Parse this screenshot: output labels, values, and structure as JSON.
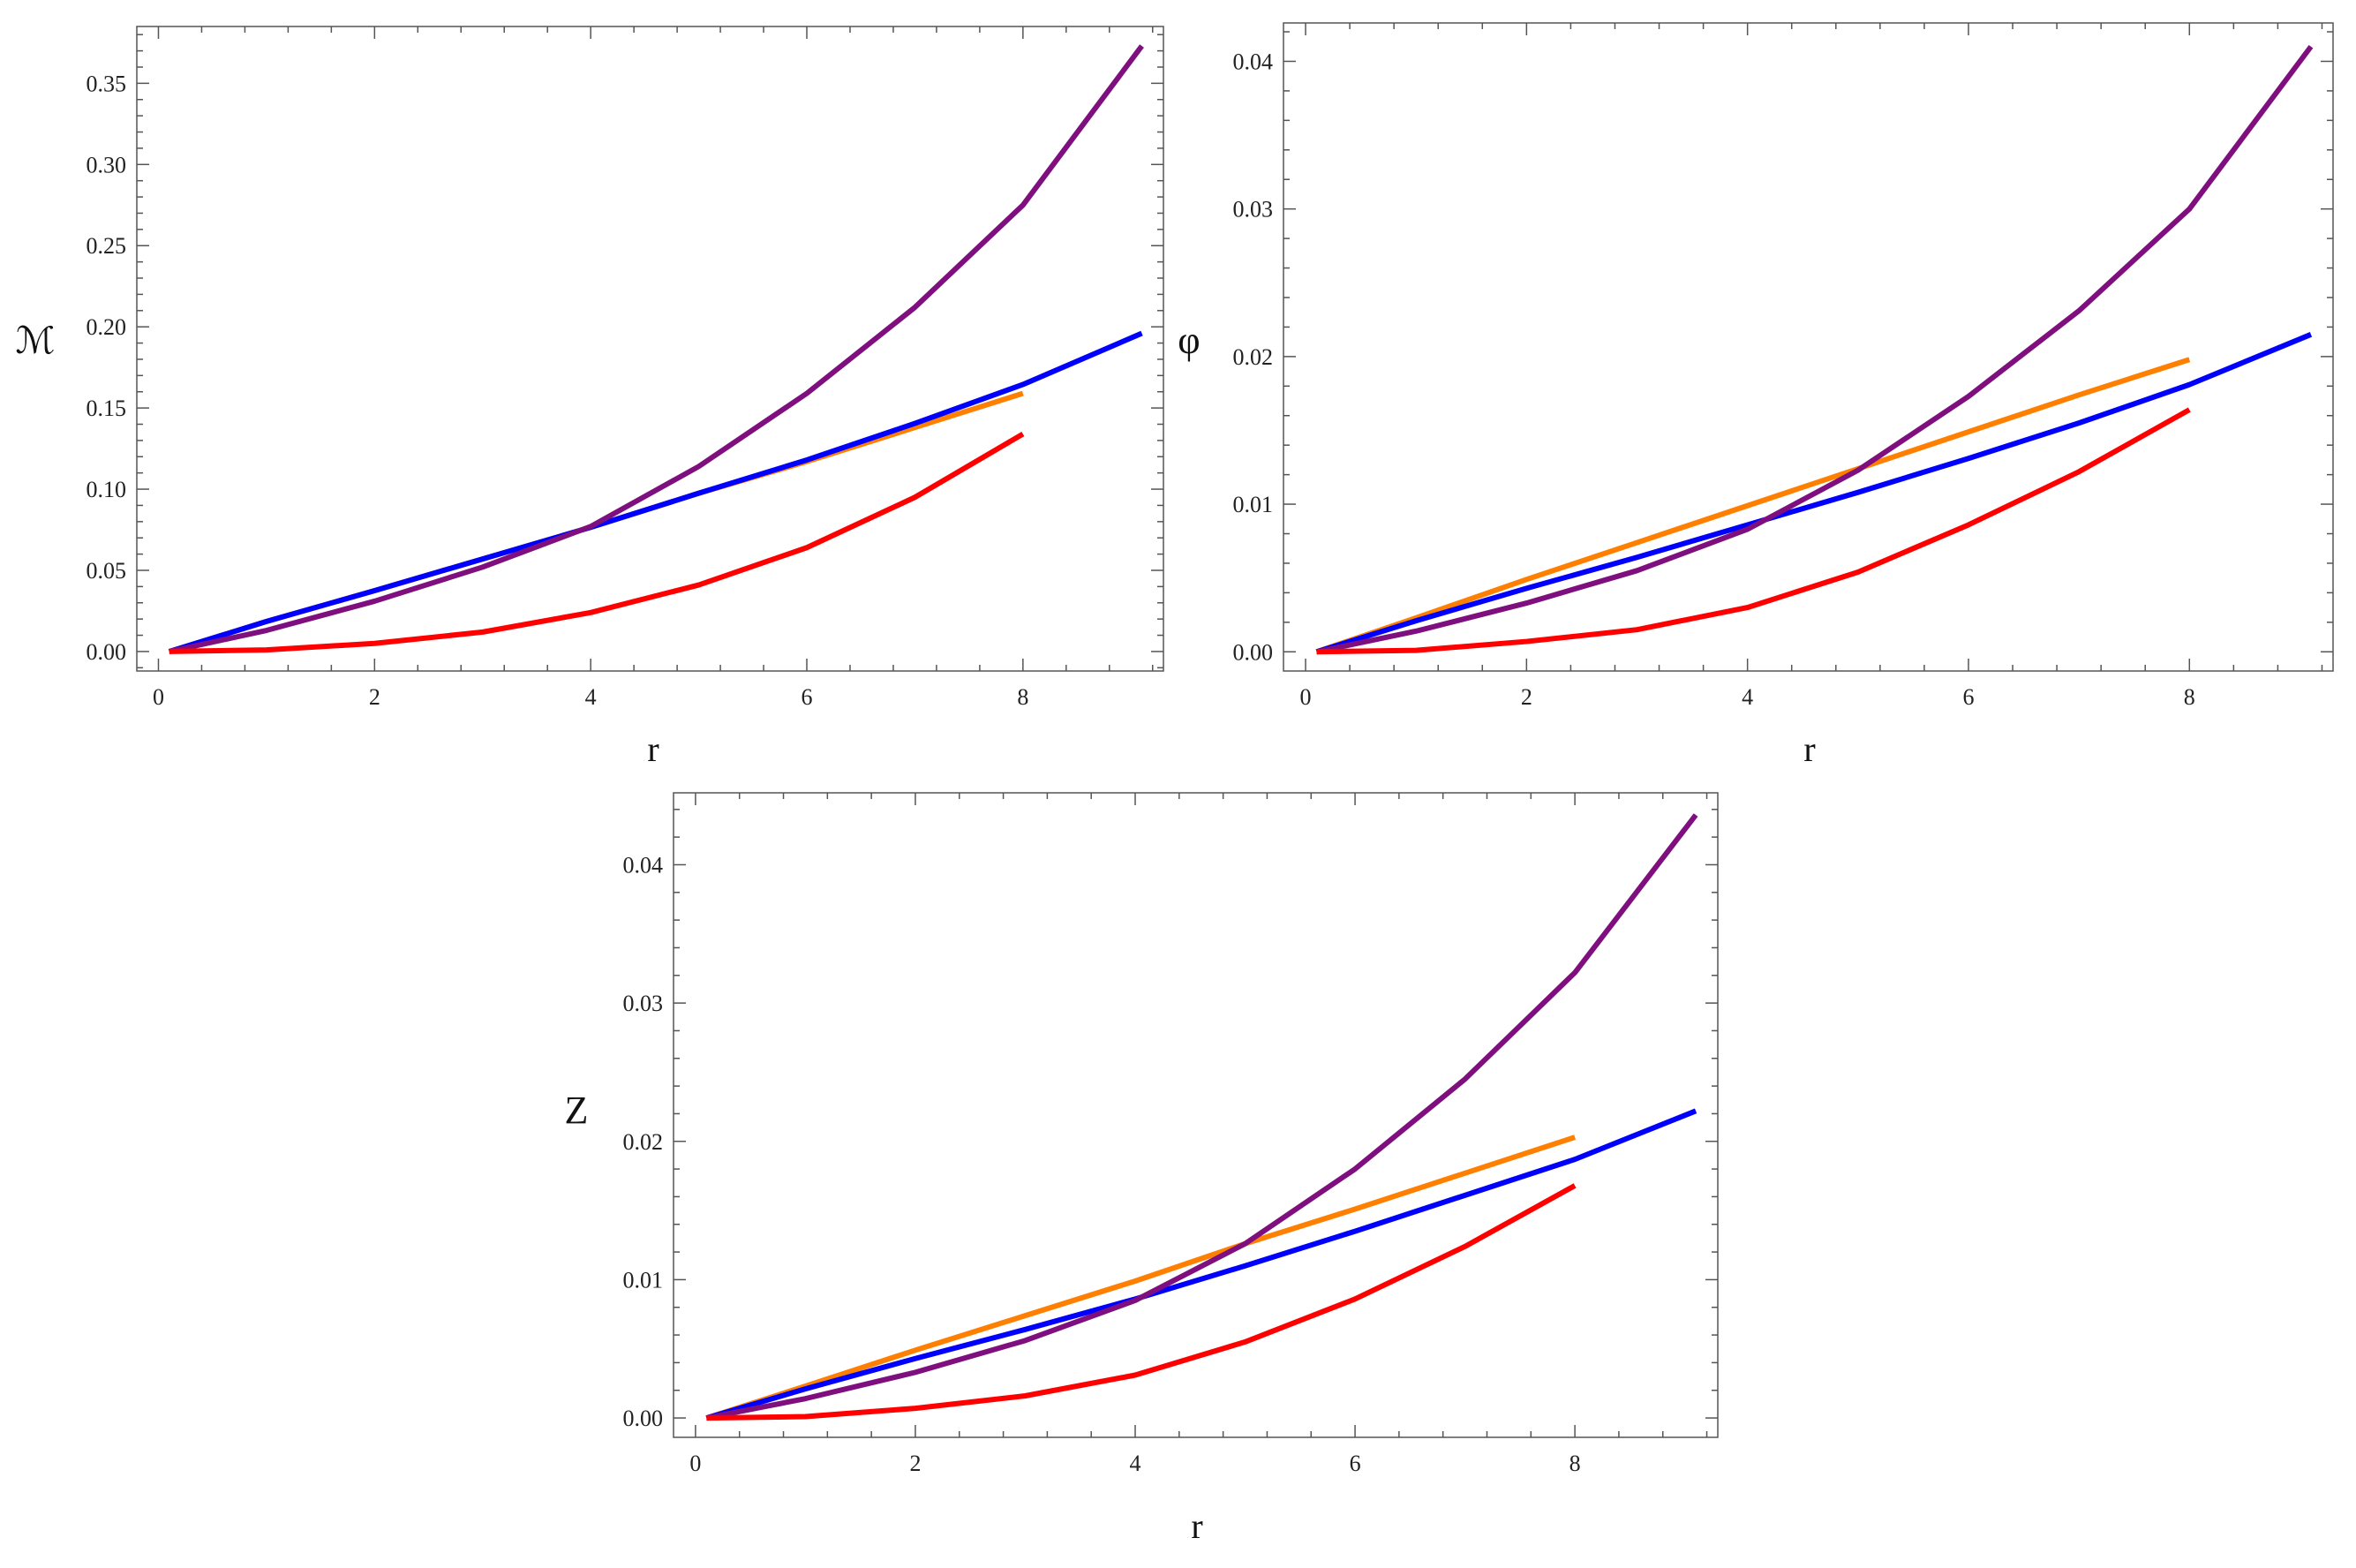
{
  "chart_data": [
    {
      "type": "line",
      "xlabel": "r",
      "ylabel": "ℳ",
      "xlim": [
        -0.2,
        9.3
      ],
      "ylim": [
        -0.012,
        0.385
      ],
      "xticks": [
        0,
        2,
        4,
        6,
        8
      ],
      "yticks": [
        0.0,
        0.05,
        0.1,
        0.15,
        0.2,
        0.25,
        0.3,
        0.35
      ],
      "ytick_format": 2,
      "grid": false,
      "series": [
        {
          "color": "#ff8000",
          "x": [
            0.1,
            1,
            2,
            3,
            4,
            5,
            6,
            7,
            8
          ],
          "y": [
            0.0,
            0.0185,
            0.0375,
            0.057,
            0.0765,
            0.0975,
            0.117,
            0.138,
            0.159
          ]
        },
        {
          "color": "#0000ff",
          "x": [
            0.1,
            1,
            2,
            3,
            4,
            5,
            6,
            7,
            8,
            9.1
          ],
          "y": [
            0.0,
            0.0185,
            0.0375,
            0.057,
            0.0765,
            0.0975,
            0.118,
            0.1405,
            0.1645,
            0.196
          ]
        },
        {
          "color": "#7f0f7f",
          "x": [
            0.1,
            1,
            2,
            3,
            4,
            5,
            6,
            7,
            8,
            9.1
          ],
          "y": [
            0.0,
            0.013,
            0.031,
            0.052,
            0.077,
            0.114,
            0.159,
            0.212,
            0.275,
            0.373
          ]
        },
        {
          "color": "#ff0000",
          "x": [
            0.1,
            1,
            2,
            3,
            4,
            5,
            6,
            7,
            8
          ],
          "y": [
            0.0,
            0.001,
            0.005,
            0.012,
            0.024,
            0.041,
            0.064,
            0.095,
            0.134
          ]
        }
      ]
    },
    {
      "type": "line",
      "xlabel": "r",
      "ylabel": "φ",
      "xlim": [
        -0.2,
        9.3
      ],
      "ylim": [
        -0.0013,
        0.0426
      ],
      "xticks": [
        0,
        2,
        4,
        6,
        8
      ],
      "yticks": [
        0.0,
        0.01,
        0.02,
        0.03,
        0.04
      ],
      "ytick_format": 2,
      "grid": false,
      "series": [
        {
          "color": "#ff8000",
          "x": [
            0.1,
            1,
            2,
            3,
            4,
            5,
            6,
            7,
            8
          ],
          "y": [
            0.0,
            0.0023,
            0.0049,
            0.0074,
            0.0099,
            0.0124,
            0.0149,
            0.0174,
            0.0198
          ]
        },
        {
          "color": "#0000ff",
          "x": [
            0.1,
            1,
            2,
            3,
            4,
            5,
            6,
            7,
            8,
            9.1
          ],
          "y": [
            0.0,
            0.0021,
            0.0043,
            0.0064,
            0.0086,
            0.0108,
            0.0131,
            0.0155,
            0.0181,
            0.0215
          ]
        },
        {
          "color": "#7f0f7f",
          "x": [
            0.1,
            1,
            2,
            3,
            4,
            5,
            6,
            7,
            8,
            9.1
          ],
          "y": [
            0.0,
            0.0014,
            0.0033,
            0.0055,
            0.0083,
            0.0123,
            0.0173,
            0.0231,
            0.03,
            0.041
          ]
        },
        {
          "color": "#ff0000",
          "x": [
            0.1,
            1,
            2,
            3,
            4,
            5,
            6,
            7,
            8
          ],
          "y": [
            0.0,
            0.0001,
            0.0007,
            0.0015,
            0.003,
            0.0054,
            0.0086,
            0.0122,
            0.0164
          ]
        }
      ]
    },
    {
      "type": "line",
      "xlabel": "r",
      "ylabel": "Z",
      "xlim": [
        -0.2,
        9.3
      ],
      "ylim": [
        -0.0014,
        0.0452
      ],
      "xticks": [
        0,
        2,
        4,
        6,
        8
      ],
      "yticks": [
        0.0,
        0.01,
        0.02,
        0.03,
        0.04
      ],
      "ytick_format": 2,
      "grid": false,
      "series": [
        {
          "color": "#ff8000",
          "x": [
            0.1,
            1,
            2,
            3,
            4,
            5,
            6,
            7,
            8
          ],
          "y": [
            0.0,
            0.0023,
            0.0049,
            0.0074,
            0.0099,
            0.0126,
            0.0151,
            0.0177,
            0.0203
          ]
        },
        {
          "color": "#0000ff",
          "x": [
            0.1,
            1,
            2,
            3,
            4,
            5,
            6,
            7,
            8,
            9.1
          ],
          "y": [
            0.0,
            0.0021,
            0.0043,
            0.0064,
            0.0086,
            0.011,
            0.0135,
            0.0161,
            0.0187,
            0.0222
          ]
        },
        {
          "color": "#7f0f7f",
          "x": [
            0.1,
            1,
            2,
            3,
            4,
            5,
            6,
            7,
            8,
            9.1
          ],
          "y": [
            0.0,
            0.0014,
            0.0033,
            0.0056,
            0.0085,
            0.0126,
            0.018,
            0.0245,
            0.0322,
            0.0436
          ]
        },
        {
          "color": "#ff0000",
          "x": [
            0.1,
            1,
            2,
            3,
            4,
            5,
            6,
            7,
            8
          ],
          "y": [
            0.0,
            0.0001,
            0.0007,
            0.0016,
            0.0031,
            0.0055,
            0.0086,
            0.0124,
            0.0168
          ]
        }
      ]
    }
  ]
}
